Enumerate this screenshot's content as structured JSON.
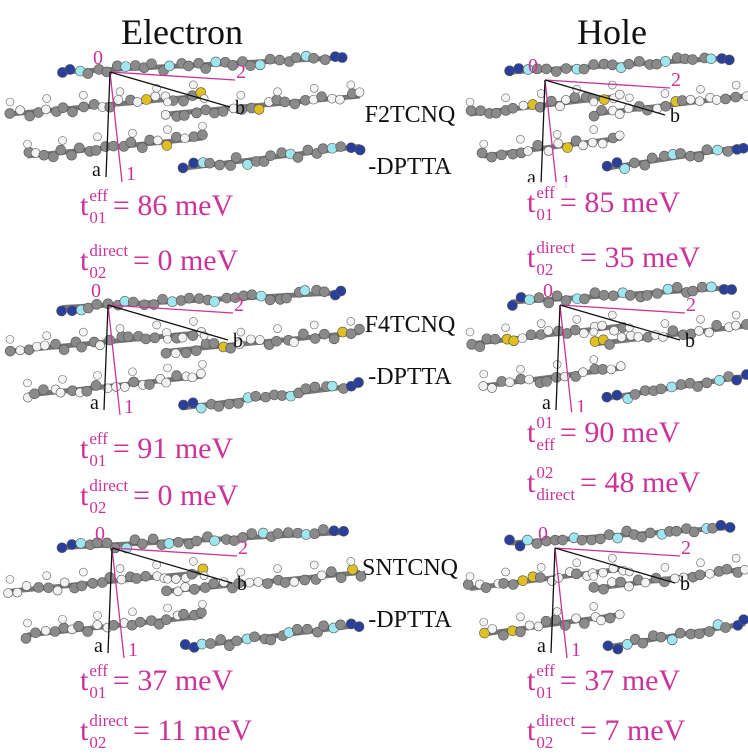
{
  "columns": [
    "Electron",
    "Hole"
  ],
  "rows": [
    {
      "material": "F2TCNQ",
      "suffix": "-DPTTA",
      "panels": [
        {
          "axes": {
            "origin": "0",
            "end2": "2",
            "b": "b",
            "a": "a",
            "end1": "1"
          },
          "couplings": [
            {
              "symbol": "t",
              "sub": "01",
              "sup": "eff",
              "value": "= 86 meV"
            },
            {
              "symbol": "t",
              "sub": "02",
              "sup": "direct",
              "value": "= 0 meV"
            }
          ]
        },
        {
          "axes": {
            "origin": "0",
            "end2": "2",
            "b": "b",
            "a": "a",
            "end1": "1"
          },
          "couplings": [
            {
              "symbol": "t",
              "sub": "01",
              "sup": "eff",
              "value": "= 85 meV"
            },
            {
              "symbol": "t",
              "sub": "02",
              "sup": "direct",
              "value": "= 35 meV"
            }
          ]
        }
      ]
    },
    {
      "material": "F4TCNQ",
      "suffix": "-DPTTA",
      "panels": [
        {
          "axes": {
            "origin": "0",
            "end2": "2",
            "b": "b",
            "a": "a",
            "end1": "1"
          },
          "couplings": [
            {
              "symbol": "t",
              "sub": "01",
              "sup": "eff",
              "value": "= 91 meV"
            },
            {
              "symbol": "t",
              "sub": "02",
              "sup": "direct",
              "value": "= 0 meV"
            }
          ]
        },
        {
          "axes": {
            "origin": "0",
            "end2": "2",
            "b": "b",
            "a": "a",
            "end1": "1"
          },
          "couplings": [
            {
              "symbol": "t",
              "sup": "01",
              "sub": "eff",
              "value": "= 90 meV"
            },
            {
              "symbol": "t",
              "sup": "02",
              "sub": "direct",
              "value": "= 48 meV"
            }
          ]
        }
      ]
    },
    {
      "material": "SNTCNQ",
      "suffix": "-DPTTA",
      "panels": [
        {
          "axes": {
            "origin": "0",
            "end2": "2",
            "b": "b",
            "a": "a",
            "end1": "1"
          },
          "couplings": [
            {
              "symbol": "t",
              "sub": "01",
              "sup": "eff",
              "value": "= 37 meV"
            },
            {
              "symbol": "t",
              "sub": "02",
              "sup": "direct",
              "value": "= 11 meV"
            }
          ]
        },
        {
          "axes": {
            "origin": "0",
            "end2": "2",
            "b": "b",
            "a": "a",
            "end1": "1"
          },
          "couplings": [
            {
              "symbol": "t",
              "sub": "01",
              "sup": "eff",
              "value": "= 37 meV"
            },
            {
              "symbol": "t",
              "sub": "02",
              "sup": "direct",
              "value": "= 7 meV"
            }
          ]
        }
      ]
    }
  ]
}
